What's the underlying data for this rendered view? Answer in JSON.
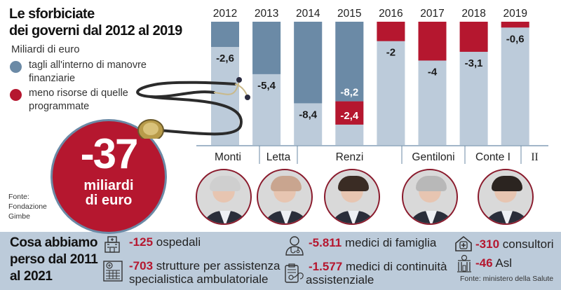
{
  "header": {
    "title_line1": "Le sforbiciate",
    "title_line2": "dei governi dal 2012 al 2019",
    "unit": "Miliardi di euro"
  },
  "legend": [
    {
      "label_line1": "tagli all'interno di manovre",
      "label_line2": "finanziarie",
      "color": "#6b8aa6"
    },
    {
      "label_line1": "meno risorse di quelle",
      "label_line2": "programmate",
      "color": "#b5172f"
    }
  ],
  "colors": {
    "blue": "#6b8aa6",
    "red": "#b5172f",
    "light": "#bccbda",
    "band": "#bccbda"
  },
  "chart_data": {
    "type": "bar",
    "title": "Le sforbiciate dei governi dal 2012 al 2019",
    "ylabel": "Miliardi di euro",
    "categories": [
      "2012",
      "2013",
      "2014",
      "2015",
      "2016",
      "2017",
      "2018",
      "2019"
    ],
    "series": [
      {
        "name": "tagli all'interno di manovre finanziarie",
        "color": "#6b8aa6",
        "values": [
          -2.6,
          -5.4,
          -8.4,
          -8.2,
          0,
          0,
          0,
          0
        ]
      },
      {
        "name": "meno risorse di quelle programmate",
        "color": "#b5172f",
        "values": [
          0,
          0,
          0,
          -2.4,
          -2,
          -4,
          -3.1,
          -0.6
        ]
      }
    ],
    "value_labels": [
      "-2,6",
      "-5,4",
      "-8,4",
      "-8,2",
      "-2",
      "-4",
      "-3,1",
      "-0,6"
    ],
    "value_labels_extra": {
      "2015": "-2,4"
    },
    "ylim": [
      -12.7,
      0
    ],
    "governments": [
      {
        "name": "Monti",
        "years": [
          "2012"
        ]
      },
      {
        "name": "Letta",
        "years": [
          "2013"
        ]
      },
      {
        "name": "Renzi",
        "years": [
          "2014",
          "2015",
          "2016"
        ]
      },
      {
        "name": "Gentiloni",
        "years": [
          "2017"
        ]
      },
      {
        "name": "Conte I",
        "years": [
          "2018"
        ]
      },
      {
        "name": "II",
        "years": [
          "2019"
        ]
      }
    ]
  },
  "total": {
    "value": "-37",
    "unit_line1": "miliardi",
    "unit_line2": "di euro"
  },
  "source_left": {
    "line1": "Fonte:",
    "line2": "Fondazione",
    "line3": "Gimbe"
  },
  "portraits": [
    {
      "name": "Monti",
      "hair": "#cfcfcf"
    },
    {
      "name": "Letta",
      "hair": "#c9a58f"
    },
    {
      "name": "Renzi",
      "hair": "#3a2c24"
    },
    {
      "name": "Gentiloni",
      "hair": "#b8b8b8"
    },
    {
      "name": "Conte",
      "hair": "#2b2420"
    }
  ],
  "losses": {
    "title_line1": "Cosa abbiamo",
    "title_line2": "perso dal 2011",
    "title_line3": "al 2021",
    "items": [
      {
        "num": "-125",
        "text": "ospedali",
        "icon": "hospital-icon"
      },
      {
        "num": "-703",
        "text": "strutture per assistenza",
        "text2": "specialistica ambulatoriale",
        "icon": "clinic-building-icon"
      },
      {
        "num": "-5.811",
        "text": "medici di famiglia",
        "icon": "doctor-icon"
      },
      {
        "num": "-1.577",
        "text": "medici di continuità",
        "text2": "assistenziale",
        "icon": "clipboard-stethoscope-icon"
      },
      {
        "num": "-310",
        "text": "consultori",
        "icon": "house-cross-icon"
      },
      {
        "num": "-46",
        "text": "Asl",
        "icon": "public-building-icon"
      }
    ],
    "source": "Fonte: ministero della Salute"
  }
}
